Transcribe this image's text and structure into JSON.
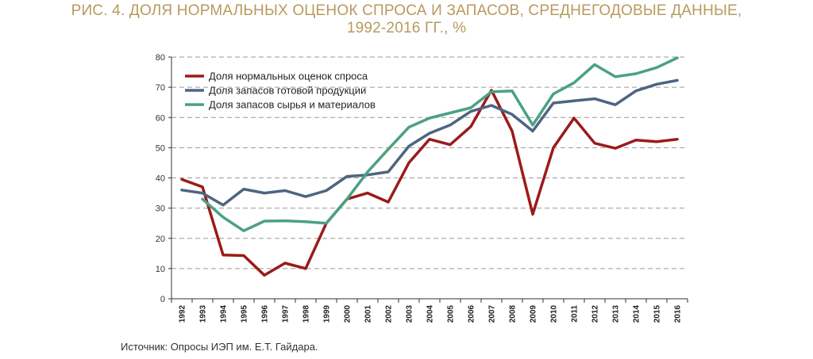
{
  "title": {
    "line1": "РИС. 4. ДОЛЯ НОРМАЛЬНЫХ ОЦЕНОК СПРОСА И ЗАПАСОВ, СРЕДНЕГОДОВЫЕ ДАННЫЕ,",
    "line2": "1992-2016 ГГ., %"
  },
  "source": "Источник: Опросы ИЭП им. Е.Т. Гайдара.",
  "chart_data": {
    "type": "line",
    "x": [
      "1992",
      "1993",
      "1994",
      "1995",
      "1996",
      "1997",
      "1998",
      "1999",
      "2000",
      "2001",
      "2002",
      "2003",
      "2004",
      "2005",
      "2006",
      "2007",
      "2008",
      "2009",
      "2010",
      "2011",
      "2012",
      "2013",
      "2014",
      "2015",
      "2016"
    ],
    "ylim": [
      0,
      80
    ],
    "yticks": [
      0,
      10,
      20,
      30,
      40,
      50,
      60,
      70,
      80
    ],
    "grid": true,
    "legend_position": "top-left",
    "series": [
      {
        "name": "Доля нормальных оценок спроса",
        "color": "#9b1b1b",
        "values": [
          39.5,
          37,
          14.5,
          14.3,
          7.8,
          11.8,
          10,
          25,
          33,
          35,
          32,
          45,
          52.8,
          51,
          57,
          69,
          55.5,
          28,
          50,
          59.8,
          51.5,
          49.8,
          52.5,
          52,
          52.8
        ]
      },
      {
        "name": "Доля запасов готовой продукции",
        "color": "#4d6580",
        "values": [
          36,
          35,
          31,
          36.3,
          35,
          35.8,
          33.8,
          35.8,
          40.5,
          41,
          42,
          50.5,
          54.8,
          57.5,
          62,
          64,
          61,
          55.5,
          64.8,
          65.5,
          66.2,
          64.2,
          68.8,
          71,
          72.3
        ]
      },
      {
        "name": "Доля запасов сырья и материалов",
        "color": "#4aa184",
        "values": [
          null,
          33,
          27,
          22.5,
          25.7,
          25.8,
          25.5,
          25,
          33,
          42,
          49.5,
          56.8,
          59.8,
          61.5,
          63.2,
          68.5,
          68.8,
          57.5,
          67.8,
          71.5,
          77.5,
          73.5,
          74.5,
          76.5,
          79.7
        ]
      }
    ]
  }
}
